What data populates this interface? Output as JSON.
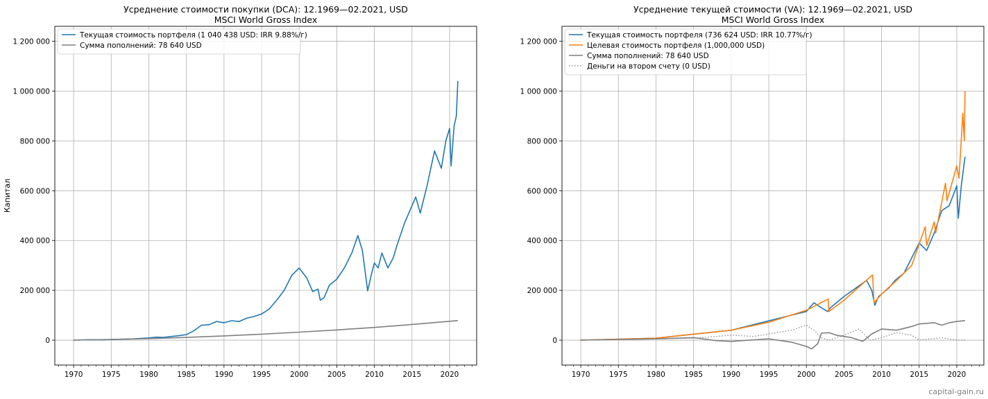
{
  "watermark": "capital-gain.ru",
  "chart_data": [
    {
      "type": "line",
      "title": "Усреднение стоимости покупки (DCA): 12.1969—02.2021, USD",
      "subtitle": "MSCI World Gross Index",
      "xlabel": "",
      "ylabel": "Капитал",
      "xlim": [
        1967.5,
        2023.6
      ],
      "ylim": [
        -100000,
        1260000
      ],
      "xticks": [
        1970,
        1975,
        1980,
        1985,
        1990,
        1995,
        2000,
        2005,
        2010,
        2015,
        2020
      ],
      "xtick_labels": [
        "1970",
        "1975",
        "1980",
        "1985",
        "1990",
        "1995",
        "2000",
        "2005",
        "2010",
        "2015",
        "2020"
      ],
      "yticks": [
        0,
        200000,
        400000,
        600000,
        800000,
        1000000,
        1200000
      ],
      "ytick_labels": [
        "0",
        "200 000",
        "400 000",
        "600 000",
        "800 000",
        "1 000 000",
        "1 200 000"
      ],
      "grid": true,
      "legend_position": "top-left",
      "series": [
        {
          "name": "Текущая стоимость портфеля (1 040 438 USD: IRR 9.88%/г)",
          "color": "#1f77b4",
          "style": "solid",
          "points": [
            [
              1969.95,
              0
            ],
            [
              1972,
              1800
            ],
            [
              1974,
              1200
            ],
            [
              1976,
              3500
            ],
            [
              1978,
              5000
            ],
            [
              1980,
              9000
            ],
            [
              1981,
              12000
            ],
            [
              1982,
              11000
            ],
            [
              1983,
              15000
            ],
            [
              1984,
              18000
            ],
            [
              1985,
              22000
            ],
            [
              1986,
              38000
            ],
            [
              1987,
              60000
            ],
            [
              1988,
              62000
            ],
            [
              1989,
              75000
            ],
            [
              1990,
              70000
            ],
            [
              1991,
              78000
            ],
            [
              1992,
              75000
            ],
            [
              1993,
              88000
            ],
            [
              1994,
              95000
            ],
            [
              1995,
              105000
            ],
            [
              1996,
              125000
            ],
            [
              1997,
              160000
            ],
            [
              1998,
              200000
            ],
            [
              1999,
              260000
            ],
            [
              2000,
              290000
            ],
            [
              2000.5,
              270000
            ],
            [
              2001,
              250000
            ],
            [
              2001.8,
              195000
            ],
            [
              2002.5,
              205000
            ],
            [
              2002.8,
              160000
            ],
            [
              2003.3,
              170000
            ],
            [
              2004,
              220000
            ],
            [
              2005,
              245000
            ],
            [
              2006,
              290000
            ],
            [
              2007,
              350000
            ],
            [
              2007.8,
              420000
            ],
            [
              2008.4,
              360000
            ],
            [
              2009.1,
              198000
            ],
            [
              2009.6,
              265000
            ],
            [
              2010,
              310000
            ],
            [
              2010.5,
              290000
            ],
            [
              2011,
              350000
            ],
            [
              2011.8,
              290000
            ],
            [
              2012.5,
              330000
            ],
            [
              2013,
              380000
            ],
            [
              2014,
              470000
            ],
            [
              2015,
              540000
            ],
            [
              2015.5,
              575000
            ],
            [
              2016.1,
              510000
            ],
            [
              2017,
              620000
            ],
            [
              2018,
              760000
            ],
            [
              2018.9,
              690000
            ],
            [
              2019.5,
              800000
            ],
            [
              2020,
              850000
            ],
            [
              2020.2,
              700000
            ],
            [
              2020.6,
              860000
            ],
            [
              2020.9,
              900000
            ],
            [
              2021.1,
              1040438
            ]
          ]
        },
        {
          "name": "Сумма пополнений: 78 640 USD",
          "color": "#7f7f7f",
          "style": "solid",
          "points": [
            [
              1969.95,
              0
            ],
            [
              1975,
              2500
            ],
            [
              1980,
              6200
            ],
            [
              1985,
              11000
            ],
            [
              1990,
              17000
            ],
            [
              1995,
              24000
            ],
            [
              2000,
              32000
            ],
            [
              2005,
              41000
            ],
            [
              2010,
              51000
            ],
            [
              2015,
              63000
            ],
            [
              2021.1,
              78640
            ]
          ]
        }
      ]
    },
    {
      "type": "line",
      "title": "Усреднение текущей стоимости (VA): 12.1969—02.2021, USD",
      "subtitle": "MSCI World Gross Index",
      "xlabel": "",
      "ylabel": "",
      "xlim": [
        1967.5,
        2023.6
      ],
      "ylim": [
        -100000,
        1260000
      ],
      "xticks": [
        1970,
        1975,
        1980,
        1985,
        1990,
        1995,
        2000,
        2005,
        2010,
        2015,
        2020
      ],
      "xtick_labels": [
        "1970",
        "1975",
        "1980",
        "1985",
        "1990",
        "1995",
        "2000",
        "2005",
        "2010",
        "2015",
        "2020"
      ],
      "yticks": [
        0,
        200000,
        400000,
        600000,
        800000,
        1000000,
        1200000
      ],
      "ytick_labels": [
        "0",
        "200 000",
        "400 000",
        "600 000",
        "800 000",
        "1 000 000",
        "1 200 000"
      ],
      "grid": true,
      "legend_position": "top-left",
      "series": [
        {
          "name": "Текущая стоимость портфеля (736 624 USD: IRR 10.77%/г)",
          "color": "#1f77b4",
          "style": "solid",
          "points": [
            [
              1969.95,
              0
            ],
            [
              1980,
              8000
            ],
            [
              1990,
              40000
            ],
            [
              2000,
              115000
            ],
            [
              2001,
              150000
            ],
            [
              2002,
              130000
            ],
            [
              2002.8,
              115000
            ],
            [
              2003.2,
              130000
            ],
            [
              2005,
              175000
            ],
            [
              2008,
              240000
            ],
            [
              2008.7,
              200000
            ],
            [
              2009.1,
              140000
            ],
            [
              2009.6,
              175000
            ],
            [
              2011,
              210000
            ],
            [
              2011.8,
              240000
            ],
            [
              2013,
              270000
            ],
            [
              2015,
              390000
            ],
            [
              2016,
              360000
            ],
            [
              2017,
              430000
            ],
            [
              2018,
              520000
            ],
            [
              2019,
              540000
            ],
            [
              2020,
              620000
            ],
            [
              2020.2,
              490000
            ],
            [
              2020.6,
              620000
            ],
            [
              2021.1,
              736624
            ]
          ]
        },
        {
          "name": "Целевая стоимость портфеля (1,000,000 USD)",
          "color": "#ff7f0e",
          "style": "solid",
          "points": [
            [
              1969.95,
              0
            ],
            [
              1980,
              8000
            ],
            [
              1990,
              40000
            ],
            [
              1995,
              72000
            ],
            [
              2000,
              120000
            ],
            [
              2002.9,
              165000
            ],
            [
              2003,
              115000
            ],
            [
              2005,
              160000
            ],
            [
              2008.8,
              262000
            ],
            [
              2009,
              150000
            ],
            [
              2010,
              185000
            ],
            [
              2012,
              240000
            ],
            [
              2014,
              300000
            ],
            [
              2015.8,
              455000
            ],
            [
              2016,
              380000
            ],
            [
              2017,
              475000
            ],
            [
              2017.2,
              430000
            ],
            [
              2018.5,
              630000
            ],
            [
              2018.7,
              560000
            ],
            [
              2020,
              700000
            ],
            [
              2020.3,
              650000
            ],
            [
              2020.8,
              910000
            ],
            [
              2021,
              800000
            ],
            [
              2021.1,
              1000000
            ]
          ]
        },
        {
          "name": "Сумма пополнений: 78 640 USD",
          "color": "#7f7f7f",
          "style": "solid",
          "points": [
            [
              1969.95,
              0
            ],
            [
              1980,
              5000
            ],
            [
              1985,
              10000
            ],
            [
              1988,
              -2000
            ],
            [
              1990,
              -5000
            ],
            [
              1995,
              5000
            ],
            [
              1998,
              -8000
            ],
            [
              2000,
              -25000
            ],
            [
              2000.7,
              -35000
            ],
            [
              2001.5,
              -15000
            ],
            [
              2002,
              28000
            ],
            [
              2003,
              30000
            ],
            [
              2004,
              20000
            ],
            [
              2006,
              10000
            ],
            [
              2007.5,
              -5000
            ],
            [
              2008.7,
              25000
            ],
            [
              2010,
              45000
            ],
            [
              2012,
              40000
            ],
            [
              2014,
              55000
            ],
            [
              2015,
              65000
            ],
            [
              2017,
              70000
            ],
            [
              2018,
              60000
            ],
            [
              2019,
              70000
            ],
            [
              2020,
              75000
            ],
            [
              2021.1,
              78640
            ]
          ]
        },
        {
          "name": "Деньги на втором счету (0 USD)",
          "color": "#7f7f7f",
          "style": "dotted",
          "points": [
            [
              1969.95,
              0
            ],
            [
              1985,
              8000
            ],
            [
              1988,
              15000
            ],
            [
              1990,
              20000
            ],
            [
              1993,
              15000
            ],
            [
              1996,
              30000
            ],
            [
              1998,
              40000
            ],
            [
              2000,
              60000
            ],
            [
              2001,
              40000
            ],
            [
              2002,
              10000
            ],
            [
              2003,
              0
            ],
            [
              2005,
              20000
            ],
            [
              2007,
              45000
            ],
            [
              2008.5,
              0
            ],
            [
              2010,
              10000
            ],
            [
              2012,
              30000
            ],
            [
              2014,
              20000
            ],
            [
              2015,
              0
            ],
            [
              2018,
              10000
            ],
            [
              2020,
              0
            ],
            [
              2021.1,
              0
            ]
          ]
        }
      ]
    }
  ]
}
